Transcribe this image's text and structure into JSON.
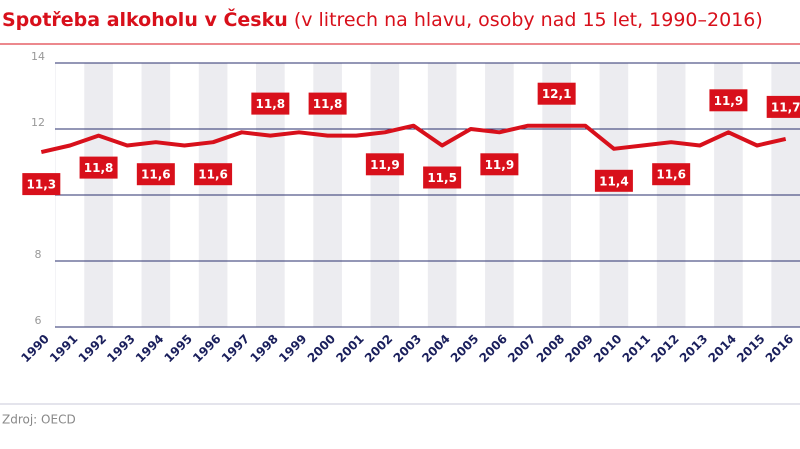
{
  "chart_data": {
    "type": "line",
    "title": "Spotřeba alkoholu v Česku",
    "subtitle": "(v litrech na hlavu, osoby nad 15 let, 1990–2016)",
    "source": "Zdroj: OECD",
    "categories": [
      "1990",
      "1991",
      "1992",
      "1993",
      "1994",
      "1995",
      "1996",
      "1997",
      "1998",
      "1999",
      "2000",
      "2001",
      "2002",
      "2003",
      "2004",
      "2005",
      "2006",
      "2007",
      "2008",
      "2009",
      "2010",
      "2011",
      "2012",
      "2013",
      "2014",
      "2015",
      "2016"
    ],
    "series": [
      {
        "color": "#d8101b",
        "values": [
          11.3,
          11.5,
          11.8,
          11.5,
          11.6,
          11.5,
          11.6,
          11.9,
          11.8,
          11.9,
          11.8,
          11.8,
          11.9,
          12.1,
          11.5,
          12.0,
          11.9,
          12.1,
          12.1,
          12.1,
          11.4,
          11.5,
          11.6,
          11.5,
          11.9,
          11.5,
          11.7
        ],
        "value_labels": [
          "11,3",
          null,
          "11,8",
          null,
          "11,6",
          null,
          "11,6",
          null,
          "11,8",
          null,
          "11,8",
          null,
          "11,9",
          null,
          "11,5",
          null,
          "11,9",
          null,
          "12,1",
          null,
          "11,4",
          null,
          "11,6",
          null,
          "11,9",
          null,
          "11,7"
        ]
      }
    ],
    "ylim": [
      6,
      14
    ],
    "yticks": [
      6,
      8,
      10,
      12,
      14
    ],
    "grid": true
  }
}
